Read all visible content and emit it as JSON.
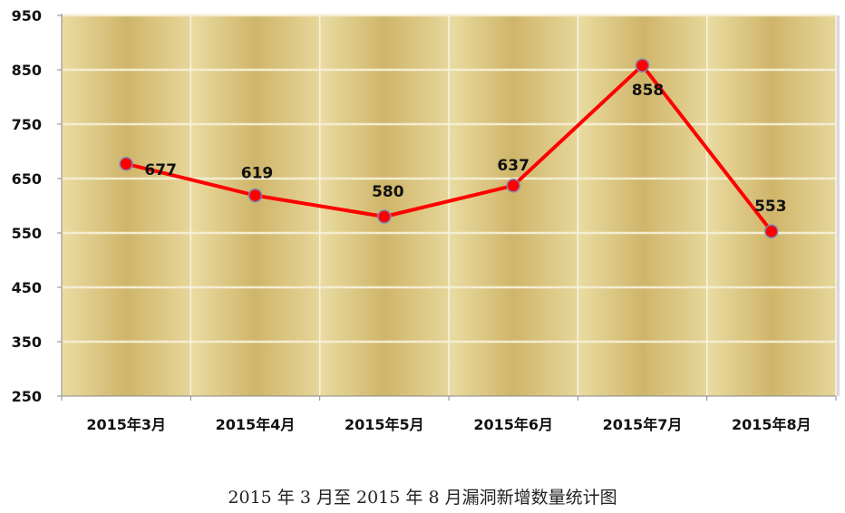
{
  "caption": "2015 年 3 月至 2015 年 8 月漏洞新增数量统计图",
  "chart_data": {
    "type": "line",
    "title": "",
    "xlabel": "",
    "ylabel": "",
    "categories": [
      "2015年3月",
      "2015年4月",
      "2015年5月",
      "2015年6月",
      "2015年7月",
      "2015年8月"
    ],
    "series": [
      {
        "values": [
          677,
          619,
          580,
          637,
          858,
          553
        ]
      }
    ],
    "ylim": [
      250,
      950
    ],
    "yticks": [
      250,
      350,
      450,
      550,
      650,
      750,
      850,
      950
    ],
    "grid": true,
    "legend": "none",
    "colors": {
      "line": "#ff0000",
      "marker": "#ff0000",
      "marker_edge": "#7d87b3"
    }
  }
}
